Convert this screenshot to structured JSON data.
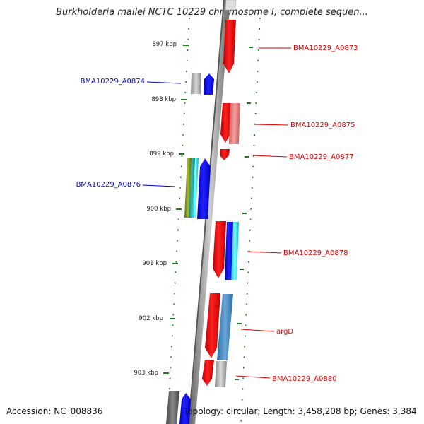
{
  "title": "Burkholderia mallei NCTC 10229 chromosome I, complete sequen...",
  "footer": {
    "accession": "Accession: NC_008836",
    "topology": "Topology: circular; Length: 3,458,208 bp; Genes: 3,384"
  },
  "scale_labels": [
    "897 kbp",
    "898 kbp",
    "899 kbp",
    "900 kbp",
    "901 kbp",
    "902 kbp",
    "903 kbp"
  ],
  "gene_labels": {
    "a0873": "BMA10229_A0873",
    "a0874": "BMA10229_A0874",
    "a0875": "BMA10229_A0875",
    "a0877": "BMA10229_A0877",
    "a0876": "BMA10229_A0876",
    "a0878": "BMA10229_A0878",
    "argd": "argD",
    "a0880": "BMA10229_A0880"
  },
  "colors": {
    "forward_label": "#e00000",
    "reverse_label": "#0000c8",
    "tick": "#1a7a1a",
    "backbone": "#888888"
  }
}
